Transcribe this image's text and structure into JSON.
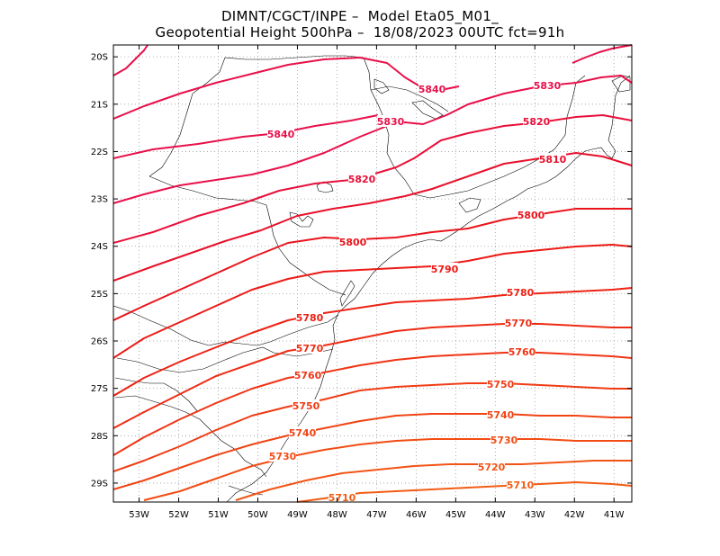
{
  "title": {
    "line1": "DIMNT/CGCT/INPE –  Model Eta05_M01_",
    "line2": "Geopotential Height 500hPa –  18/08/2023 00UTC fct=91h"
  },
  "map": {
    "lon_range": [
      -53.65,
      -40.55
    ],
    "lat_range": [
      -29.4,
      -19.75
    ],
    "lat_ticks": [
      "20S",
      "21S",
      "22S",
      "23S",
      "24S",
      "25S",
      "26S",
      "27S",
      "28S",
      "29S"
    ],
    "lon_ticks": [
      "53W",
      "52W",
      "51W",
      "50W",
      "49W",
      "48W",
      "47W",
      "46W",
      "45W",
      "44W",
      "43W",
      "42W",
      "41W"
    ],
    "grid": true
  },
  "contours": [
    {
      "value": 5840,
      "label": "5840",
      "color": "#e8104a"
    },
    {
      "value": 5830,
      "label": "5830",
      "color": "#e8104a"
    },
    {
      "value": 5820,
      "label": "5820",
      "color": "#e8103a"
    },
    {
      "value": 5810,
      "label": "5810",
      "color": "#e8102a"
    },
    {
      "value": 5800,
      "label": "5800",
      "color": "#ea141c"
    },
    {
      "value": 5790,
      "label": "5790",
      "color": "#ec1a16"
    },
    {
      "value": 5780,
      "label": "5780",
      "color": "#ee2214"
    },
    {
      "value": 5770,
      "label": "5770",
      "color": "#ee2c14"
    },
    {
      "value": 5760,
      "label": "5760",
      "color": "#f03414"
    },
    {
      "value": 5750,
      "label": "5750",
      "color": "#f03c14"
    },
    {
      "value": 5740,
      "label": "5740",
      "color": "#f04414"
    },
    {
      "value": 5730,
      "label": "5730",
      "color": "#f24c14"
    },
    {
      "value": 5720,
      "label": "5720",
      "color": "#f25414"
    },
    {
      "value": 5710,
      "label": "5710",
      "color": "#f25c14"
    }
  ]
}
